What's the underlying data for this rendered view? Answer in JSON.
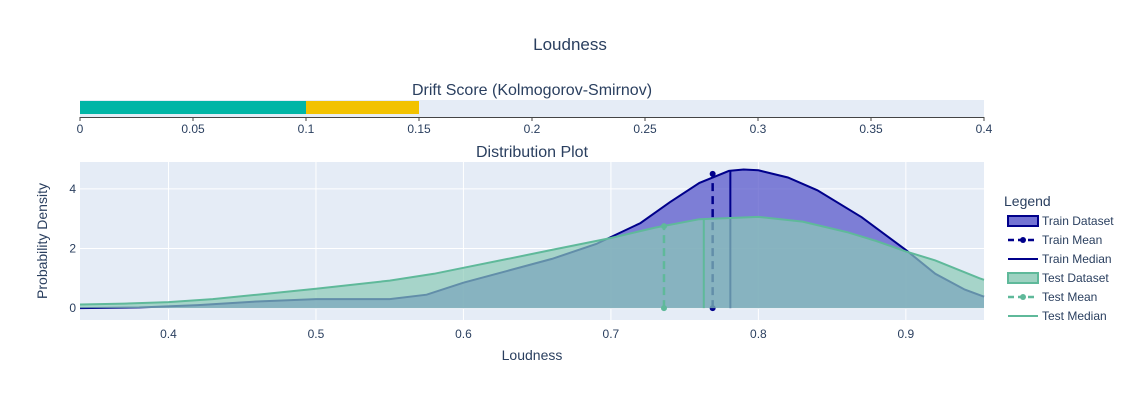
{
  "page": {
    "title": "Loudness"
  },
  "colors": {
    "plot_bg": "#e5ecf6",
    "grid": "#ffffff",
    "train_line": "#00008b",
    "train_fill": "#5a5acb",
    "test_line": "#5fb99a",
    "test_fill": "#8ccab6",
    "drift_green": "#00b5a6",
    "drift_yellow": "#f2c200",
    "axis_line": "#444444"
  },
  "chart_data": [
    {
      "type": "bar",
      "title": "Drift Score (Kolmogorov-Smirnov)",
      "orientation": "horizontal",
      "segments": [
        {
          "from": 0,
          "to": 0.1,
          "color": "#00b5a6"
        },
        {
          "from": 0.1,
          "to": 0.15,
          "color": "#f2c200"
        }
      ],
      "xlim": [
        0,
        0.4
      ],
      "xticks": [
        0,
        0.05,
        0.1,
        0.15,
        0.2,
        0.25,
        0.3,
        0.35,
        0.4
      ],
      "xtick_labels": [
        "0",
        "0.05",
        "0.1",
        "0.15",
        "0.2",
        "0.25",
        "0.3",
        "0.35",
        "0.4"
      ]
    },
    {
      "type": "area",
      "title": "Distribution Plot",
      "xlabel": "Loudness",
      "ylabel": "Probability Density",
      "xlim": [
        0.34,
        0.953
      ],
      "ylim": [
        -0.4,
        4.9
      ],
      "xticks": [
        0.4,
        0.5,
        0.6,
        0.7,
        0.8,
        0.9
      ],
      "xtick_labels": [
        "0.4",
        "0.5",
        "0.6",
        "0.7",
        "0.8",
        "0.9"
      ],
      "yticks": [
        0,
        2,
        4
      ],
      "ytick_labels": [
        "0",
        "2",
        "4"
      ],
      "grid": true,
      "legend_title": "Legend",
      "legend_position": "right",
      "series": [
        {
          "name": "Train Dataset",
          "kind": "density",
          "x": [
            0.34,
            0.38,
            0.42,
            0.46,
            0.5,
            0.55,
            0.575,
            0.6,
            0.63,
            0.66,
            0.69,
            0.72,
            0.74,
            0.76,
            0.78,
            0.79,
            0.8,
            0.82,
            0.84,
            0.87,
            0.9,
            0.92,
            0.94,
            0.953
          ],
          "y": [
            0.0,
            0.02,
            0.1,
            0.22,
            0.3,
            0.3,
            0.45,
            0.85,
            1.25,
            1.65,
            2.15,
            2.85,
            3.55,
            4.2,
            4.6,
            4.65,
            4.62,
            4.38,
            3.95,
            3.05,
            1.95,
            1.15,
            0.62,
            0.38
          ]
        },
        {
          "name": "Train Mean",
          "kind": "mean",
          "x": 0.769,
          "y_top": 4.5
        },
        {
          "name": "Train Median",
          "kind": "median",
          "x": 0.781,
          "y_top": 4.62
        },
        {
          "name": "Test Dataset",
          "kind": "density",
          "x": [
            0.34,
            0.37,
            0.4,
            0.43,
            0.46,
            0.5,
            0.55,
            0.58,
            0.6,
            0.63,
            0.66,
            0.7,
            0.73,
            0.76,
            0.8,
            0.83,
            0.86,
            0.88,
            0.9,
            0.92,
            0.95,
            0.953
          ],
          "y": [
            0.12,
            0.15,
            0.2,
            0.3,
            0.45,
            0.65,
            0.92,
            1.15,
            1.35,
            1.65,
            1.95,
            2.35,
            2.7,
            2.98,
            3.06,
            2.9,
            2.55,
            2.25,
            1.9,
            1.6,
            1.0,
            0.95
          ]
        },
        {
          "name": "Test Mean",
          "kind": "mean",
          "x": 0.736,
          "y_top": 2.75
        },
        {
          "name": "Test Median",
          "kind": "median",
          "x": 0.763,
          "y_top": 2.98
        }
      ]
    }
  ]
}
